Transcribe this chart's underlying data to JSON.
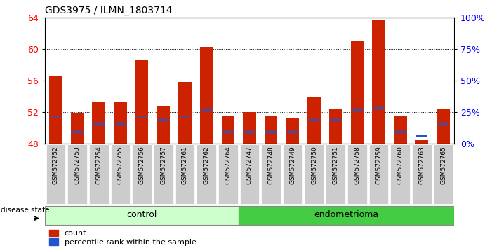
{
  "title": "GDS3975 / ILMN_1803714",
  "samples": [
    "GSM572752",
    "GSM572753",
    "GSM572754",
    "GSM572755",
    "GSM572756",
    "GSM572757",
    "GSM572761",
    "GSM572762",
    "GSM572764",
    "GSM572747",
    "GSM572748",
    "GSM572749",
    "GSM572750",
    "GSM572751",
    "GSM572758",
    "GSM572759",
    "GSM572760",
    "GSM572763",
    "GSM572765"
  ],
  "counts": [
    56.5,
    51.8,
    53.3,
    53.3,
    58.7,
    52.7,
    55.8,
    60.3,
    51.5,
    52.0,
    51.5,
    51.3,
    54.0,
    52.5,
    61.0,
    63.7,
    51.5,
    48.5,
    52.5
  ],
  "percentiles": [
    51.5,
    49.5,
    50.5,
    50.5,
    51.5,
    51.0,
    51.5,
    52.3,
    49.5,
    49.5,
    49.5,
    49.5,
    51.0,
    51.0,
    52.3,
    52.5,
    49.5,
    49.0,
    50.5
  ],
  "n_control": 9,
  "n_endometrioma": 10,
  "ymin": 48,
  "ymax": 64,
  "yticks_left": [
    48,
    52,
    56,
    60,
    64
  ],
  "yticks_right_vals": [
    0,
    25,
    50,
    75,
    100
  ],
  "yticks_right_labels": [
    "0%",
    "25%",
    "50%",
    "75%",
    "100%"
  ],
  "bar_color": "#cc2200",
  "blue_color": "#2255cc",
  "control_color": "#ccffcc",
  "endometrioma_color": "#44cc44",
  "sample_box_color": "#cccccc",
  "bar_width": 0.6,
  "disease_state_label": "disease state",
  "control_label": "control",
  "endometrioma_label": "endometrioma",
  "legend_count": "count",
  "legend_pct": "percentile rank within the sample"
}
